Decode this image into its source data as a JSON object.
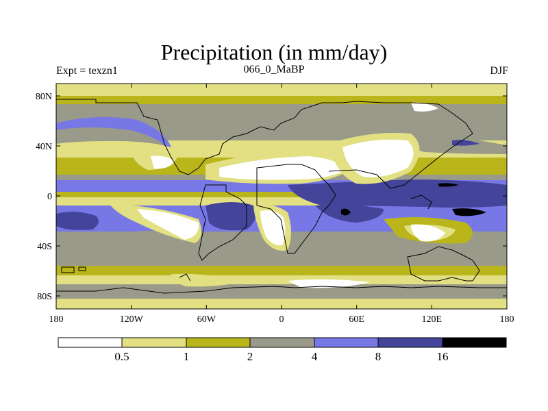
{
  "title": "Precipitation (in mm/day)",
  "subtitle_left": "Expt = texzn1",
  "subtitle_center": "066_0_MaBP",
  "subtitle_right": "DJF",
  "lat_labels": [
    "80N",
    "40N",
    "0",
    "40S",
    "80S"
  ],
  "lon_labels": [
    "180",
    "120W",
    "60W",
    "0",
    "60E",
    "120E",
    "180"
  ],
  "colorbar": {
    "labels": [
      "0.5",
      "1",
      "2",
      "4",
      "8",
      "16"
    ],
    "colors": [
      "#ffffff",
      "#e2e083",
      "#b9b51b",
      "#9a9a8a",
      "#7777e6",
      "#44449a",
      "#000000"
    ]
  }
}
